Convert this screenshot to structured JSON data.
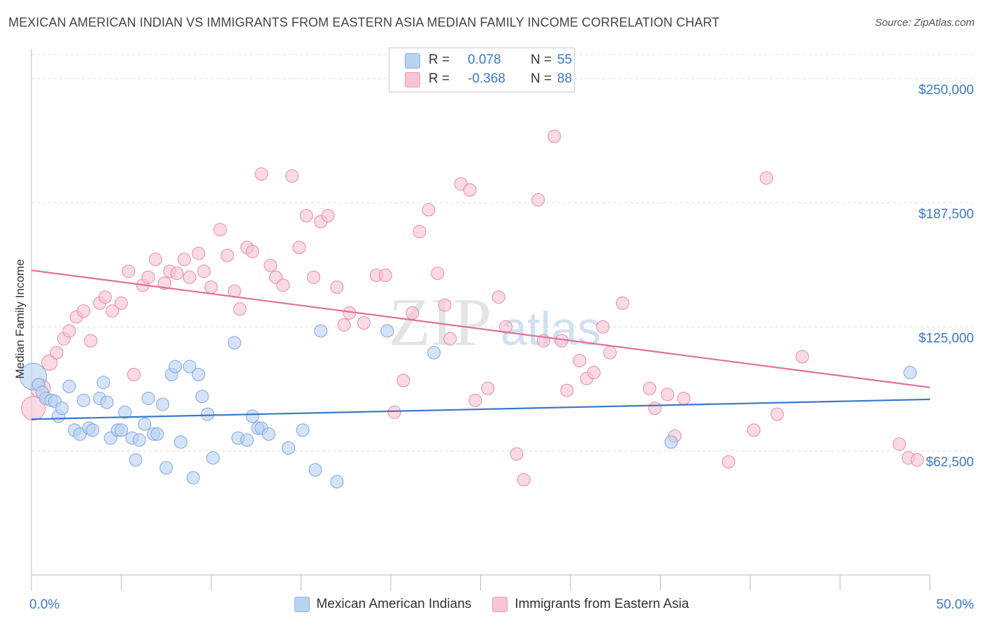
{
  "title": "MEXICAN AMERICAN INDIAN VS IMMIGRANTS FROM EASTERN ASIA MEDIAN FAMILY INCOME CORRELATION CHART",
  "source": "Source: ZipAtlas.com",
  "watermark": {
    "zip": "ZIP",
    "atlas": "atlas"
  },
  "stats": {
    "blue": {
      "r_label": "R =",
      "r_value": "0.078",
      "n_label": "N =",
      "n_value": "55"
    },
    "pink": {
      "r_label": "R =",
      "r_value": "-0.368",
      "n_label": "N =",
      "n_value": "88"
    }
  },
  "legend": {
    "blue": "Mexican American Indians",
    "pink": "Immigrants from Eastern Asia"
  },
  "colors": {
    "blue": "#3a78c9",
    "pink": "#e07098",
    "blue_fill": "#b9d2f2",
    "pink_fill": "#f7c4d2",
    "grid": "#dddddd",
    "tick_label": "#3a78c9"
  },
  "chart_data": {
    "type": "scatter",
    "ylabel": "Median Family Income",
    "xlim": [
      0,
      50
    ],
    "ylim": [
      0,
      265000
    ],
    "x_tick_labels": {
      "left": "0.0%",
      "right": "50.0%"
    },
    "y_ticks": [
      {
        "value": 62500,
        "label": "$62,500"
      },
      {
        "value": 125000,
        "label": "$125,000"
      },
      {
        "value": 187500,
        "label": "$187,500"
      },
      {
        "value": 250000,
        "label": "$250,000"
      }
    ],
    "grid": true,
    "legend_position": "bottom",
    "series": [
      {
        "name": "Mexican American Indians",
        "color": "#3a78c9",
        "trend": [
          [
            0,
            78500
          ],
          [
            50,
            88500
          ]
        ],
        "points": [
          [
            0.1,
            100000
          ],
          [
            0.4,
            96000
          ],
          [
            0.6,
            92000
          ],
          [
            0.8,
            89000
          ],
          [
            1.1,
            88000
          ],
          [
            1.3,
            87500
          ],
          [
            1.5,
            80000
          ],
          [
            1.7,
            84000
          ],
          [
            2.1,
            95000
          ],
          [
            2.4,
            73000
          ],
          [
            2.7,
            71000
          ],
          [
            2.9,
            88000
          ],
          [
            3.2,
            74000
          ],
          [
            3.4,
            73000
          ],
          [
            3.8,
            89000
          ],
          [
            4.0,
            97000
          ],
          [
            4.2,
            87000
          ],
          [
            4.4,
            69000
          ],
          [
            4.8,
            73000
          ],
          [
            5.0,
            73000
          ],
          [
            5.2,
            82000
          ],
          [
            5.6,
            69000
          ],
          [
            5.8,
            58000
          ],
          [
            6.0,
            68000
          ],
          [
            6.3,
            76000
          ],
          [
            6.5,
            89000
          ],
          [
            6.8,
            71000
          ],
          [
            7.0,
            71000
          ],
          [
            7.3,
            86000
          ],
          [
            7.5,
            54000
          ],
          [
            7.8,
            101000
          ],
          [
            8.0,
            105000
          ],
          [
            8.3,
            67000
          ],
          [
            8.8,
            105000
          ],
          [
            9.0,
            49000
          ],
          [
            9.3,
            101000
          ],
          [
            9.5,
            90000
          ],
          [
            9.8,
            81000
          ],
          [
            10.1,
            59000
          ],
          [
            11.3,
            117000
          ],
          [
            11.5,
            69000
          ],
          [
            12.0,
            68000
          ],
          [
            12.3,
            80000
          ],
          [
            12.6,
            74000
          ],
          [
            12.8,
            74000
          ],
          [
            13.2,
            71000
          ],
          [
            14.3,
            64000
          ],
          [
            15.1,
            73000
          ],
          [
            15.8,
            53000
          ],
          [
            16.1,
            123000
          ],
          [
            17.0,
            47000
          ],
          [
            19.8,
            123000
          ],
          [
            22.4,
            112000
          ],
          [
            35.6,
            67000
          ],
          [
            48.9,
            102000
          ]
        ]
      },
      {
        "name": "Immigrants from Eastern Asia",
        "color": "#e07098",
        "trend": [
          [
            0,
            153500
          ],
          [
            50,
            94500
          ]
        ],
        "points": [
          [
            0.1,
            84000
          ],
          [
            0.5,
            94000
          ],
          [
            1.0,
            107000
          ],
          [
            1.4,
            112000
          ],
          [
            1.8,
            119000
          ],
          [
            2.1,
            123000
          ],
          [
            2.5,
            130000
          ],
          [
            2.9,
            133000
          ],
          [
            3.3,
            118000
          ],
          [
            3.8,
            137000
          ],
          [
            4.1,
            140000
          ],
          [
            4.5,
            133000
          ],
          [
            5.0,
            137000
          ],
          [
            5.4,
            153000
          ],
          [
            5.7,
            101000
          ],
          [
            6.2,
            146000
          ],
          [
            6.5,
            150000
          ],
          [
            6.9,
            159000
          ],
          [
            7.4,
            147000
          ],
          [
            7.7,
            153000
          ],
          [
            8.1,
            152000
          ],
          [
            8.5,
            159000
          ],
          [
            8.8,
            150000
          ],
          [
            9.3,
            162000
          ],
          [
            9.6,
            153000
          ],
          [
            10.0,
            145000
          ],
          [
            10.5,
            174000
          ],
          [
            10.9,
            161000
          ],
          [
            11.3,
            143000
          ],
          [
            11.6,
            134000
          ],
          [
            12.0,
            165000
          ],
          [
            12.3,
            163000
          ],
          [
            12.8,
            202000
          ],
          [
            13.3,
            156000
          ],
          [
            13.6,
            150000
          ],
          [
            14.0,
            146000
          ],
          [
            14.5,
            201000
          ],
          [
            14.9,
            165000
          ],
          [
            15.3,
            181000
          ],
          [
            15.7,
            150000
          ],
          [
            16.1,
            178000
          ],
          [
            16.5,
            181000
          ],
          [
            17.0,
            145000
          ],
          [
            17.4,
            126000
          ],
          [
            17.7,
            132000
          ],
          [
            18.5,
            127000
          ],
          [
            19.2,
            151000
          ],
          [
            19.7,
            151000
          ],
          [
            20.2,
            82000
          ],
          [
            20.7,
            98000
          ],
          [
            21.2,
            132000
          ],
          [
            21.6,
            173000
          ],
          [
            22.1,
            184000
          ],
          [
            22.6,
            152000
          ],
          [
            23.0,
            136000
          ],
          [
            23.3,
            119000
          ],
          [
            23.9,
            197000
          ],
          [
            24.4,
            194000
          ],
          [
            24.7,
            88000
          ],
          [
            25.4,
            94000
          ],
          [
            26.0,
            140000
          ],
          [
            26.4,
            125000
          ],
          [
            27.0,
            61000
          ],
          [
            27.4,
            48000
          ],
          [
            28.2,
            189000
          ],
          [
            28.5,
            118000
          ],
          [
            29.1,
            221000
          ],
          [
            29.5,
            118000
          ],
          [
            29.8,
            93000
          ],
          [
            30.5,
            108000
          ],
          [
            30.9,
            99000
          ],
          [
            31.3,
            102000
          ],
          [
            31.8,
            125000
          ],
          [
            32.2,
            112000
          ],
          [
            32.9,
            137000
          ],
          [
            34.4,
            94000
          ],
          [
            34.7,
            84000
          ],
          [
            35.4,
            91000
          ],
          [
            35.8,
            70000
          ],
          [
            36.3,
            89000
          ],
          [
            38.8,
            57000
          ],
          [
            40.2,
            73000
          ],
          [
            40.9,
            200000
          ],
          [
            41.5,
            81000
          ],
          [
            42.9,
            110000
          ],
          [
            48.3,
            66000
          ],
          [
            48.8,
            59000
          ],
          [
            49.3,
            58000
          ]
        ]
      }
    ]
  }
}
